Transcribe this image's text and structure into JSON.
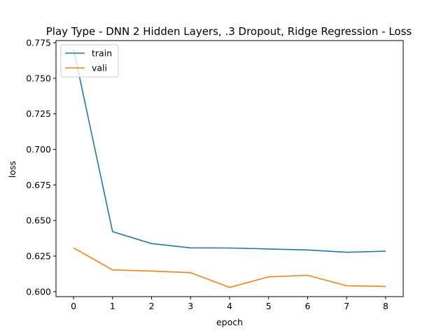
{
  "chart_data": {
    "type": "line",
    "title": "Play Type - DNN 2 Hidden Layers, .3 Dropout, Ridge Regression - Loss",
    "xlabel": "epoch",
    "ylabel": "loss",
    "x": [
      0,
      1,
      2,
      3,
      4,
      5,
      6,
      7,
      8
    ],
    "xticks": [
      "0",
      "1",
      "2",
      "3",
      "4",
      "5",
      "6",
      "7",
      "8"
    ],
    "yticks": [
      "0.600",
      "0.625",
      "0.650",
      "0.675",
      "0.700",
      "0.725",
      "0.750",
      "0.775"
    ],
    "xlim": [
      -0.45,
      8.45
    ],
    "ylim": [
      0.5965,
      0.7765
    ],
    "legend_position": "upper-left",
    "grid": false,
    "series": [
      {
        "name": "train",
        "color": "#1f77b4",
        "values": [
          0.7705,
          0.6422,
          0.6338,
          0.6308,
          0.6307,
          0.63,
          0.6293,
          0.6277,
          0.6284
        ]
      },
      {
        "name": "vali",
        "color": "#ff7f0e",
        "values": [
          0.6308,
          0.6153,
          0.6145,
          0.6133,
          0.603,
          0.6104,
          0.6115,
          0.6041,
          0.6037
        ]
      }
    ]
  }
}
